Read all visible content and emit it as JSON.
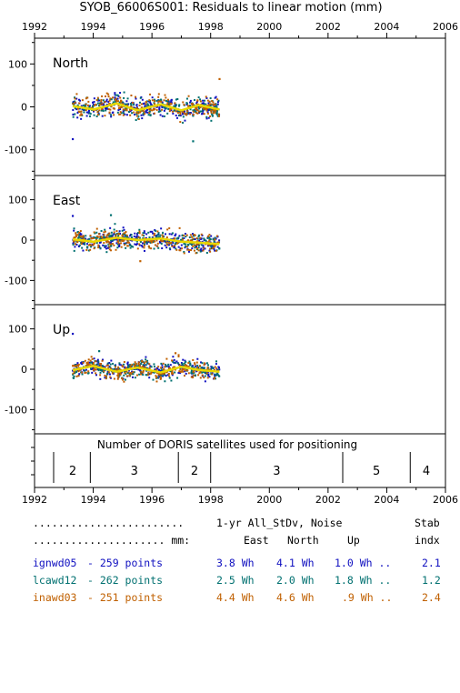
{
  "title": "SYOB_66006S001: Residuals to linear motion (mm)",
  "x_ticks": [
    "1992",
    "1994",
    "1996",
    "1998",
    "2000",
    "2002",
    "2004",
    "2006"
  ],
  "colors": {
    "ignwd05": "#1010c0",
    "lcawd12": "#007070",
    "inawd03": "#c06000",
    "smooth": "#e8d800",
    "frame": "#000000"
  },
  "chart_data": [
    {
      "type": "scatter",
      "panel": "North",
      "xlim": [
        1992,
        2006
      ],
      "ylim": [
        -160,
        160
      ],
      "y_ticks": [
        "100",
        "0",
        "-100"
      ],
      "data_span": [
        1993.3,
        1998.3
      ],
      "spread": 22,
      "outliers": [
        {
          "x": 1993.3,
          "y": -75
        },
        {
          "x": 1997.4,
          "y": -80
        },
        {
          "x": 1998.3,
          "y": 65
        }
      ],
      "smooth": [
        [
          1993.3,
          2
        ],
        [
          1994.0,
          -6
        ],
        [
          1994.8,
          8
        ],
        [
          1995.5,
          -8
        ],
        [
          1996.3,
          6
        ],
        [
          1997.0,
          -8
        ],
        [
          1997.6,
          4
        ],
        [
          1998.3,
          -6
        ]
      ]
    },
    {
      "type": "scatter",
      "panel": "East",
      "xlim": [
        1992,
        2006
      ],
      "ylim": [
        -160,
        160
      ],
      "y_ticks": [
        "100",
        "0",
        "-100"
      ],
      "data_span": [
        1993.3,
        1998.3
      ],
      "spread": 22,
      "outliers": [
        {
          "x": 1993.3,
          "y": 60
        },
        {
          "x": 1994.6,
          "y": 62
        },
        {
          "x": 1995.6,
          "y": -52
        }
      ],
      "smooth": [
        [
          1993.3,
          2
        ],
        [
          1994.0,
          -4
        ],
        [
          1994.8,
          6
        ],
        [
          1995.5,
          0
        ],
        [
          1996.3,
          4
        ],
        [
          1997.0,
          -4
        ],
        [
          1997.6,
          -6
        ],
        [
          1998.3,
          -10
        ]
      ]
    },
    {
      "type": "scatter",
      "panel": "Up",
      "xlim": [
        1992,
        2006
      ],
      "ylim": [
        -160,
        160
      ],
      "y_ticks": [
        "100",
        "0",
        "-100"
      ],
      "data_span": [
        1993.3,
        1998.3
      ],
      "spread": 20,
      "outliers": [
        {
          "x": 1993.3,
          "y": 88
        },
        {
          "x": 1994.2,
          "y": 45
        },
        {
          "x": 1996.8,
          "y": 40
        }
      ],
      "smooth": [
        [
          1993.3,
          -2
        ],
        [
          1994.0,
          8
        ],
        [
          1994.8,
          -6
        ],
        [
          1995.5,
          4
        ],
        [
          1996.3,
          -8
        ],
        [
          1997.0,
          6
        ],
        [
          1997.6,
          -2
        ],
        [
          1998.3,
          -6
        ]
      ]
    },
    {
      "type": "bar",
      "panel": "satellites",
      "title": "Number of DORIS satellites used for positioning",
      "xlim": [
        1992,
        2006
      ],
      "dividers": [
        1992.65,
        1993.9,
        1996.9,
        1998.0,
        2002.5,
        2004.8
      ],
      "segments": [
        {
          "x": 1993.3,
          "label": "2"
        },
        {
          "x": 1995.4,
          "label": "3"
        },
        {
          "x": 1997.45,
          "label": "2"
        },
        {
          "x": 2000.25,
          "label": "3"
        },
        {
          "x": 2003.65,
          "label": "5"
        },
        {
          "x": 2005.35,
          "label": "4"
        }
      ]
    }
  ],
  "table": {
    "header1": {
      "dots": "........................",
      "label": "1-yr All_StDv, Noise",
      "stab": "Stab"
    },
    "header2": {
      "dots": "..................... mm:",
      "east": "East",
      "north": "North",
      "up": "Up",
      "indx": "indx"
    },
    "rows": [
      {
        "name": "ignwd05",
        "points": "- 259 points",
        "east": "3.8 Wh",
        "north": "4.1 Wh",
        "up": "1.0 Wh ..",
        "stab": "2.1",
        "color": "#1010c0"
      },
      {
        "name": "lcawd12",
        "points": "- 262 points",
        "east": "2.5 Wh",
        "north": "2.0 Wh",
        "up": "1.8 Wh ..",
        "stab": "1.2",
        "color": "#007070"
      },
      {
        "name": "inawd03",
        "points": "- 251 points",
        "east": "4.4 Wh",
        "north": "4.6 Wh",
        "up": ".9 Wh ..",
        "stab": "2.4",
        "color": "#c06000"
      }
    ]
  }
}
